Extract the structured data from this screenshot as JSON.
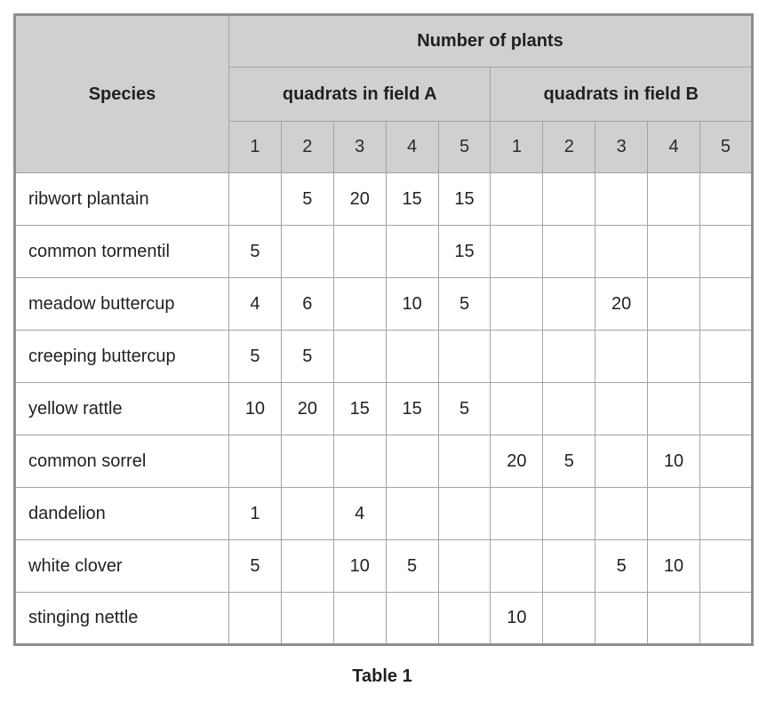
{
  "table": {
    "caption": "Table 1",
    "header": {
      "species": "Species",
      "number_of_plants": "Number of plants",
      "field_a": "quadrats in field A",
      "field_b": "quadrats in field B",
      "quadrat_numbers": [
        "1",
        "2",
        "3",
        "4",
        "5",
        "1",
        "2",
        "3",
        "4",
        "5"
      ]
    },
    "rows": [
      {
        "species": "ribwort plantain",
        "values": [
          "",
          "5",
          "20",
          "15",
          "15",
          "",
          "",
          "",
          "",
          ""
        ]
      },
      {
        "species": "common tormentil",
        "values": [
          "5",
          "",
          "",
          "",
          "15",
          "",
          "",
          "",
          "",
          ""
        ]
      },
      {
        "species": "meadow buttercup",
        "values": [
          "4",
          "6",
          "",
          "10",
          "5",
          "",
          "",
          "20",
          "",
          ""
        ]
      },
      {
        "species": "creeping buttercup",
        "values": [
          "5",
          "5",
          "",
          "",
          "",
          "",
          "",
          "",
          "",
          ""
        ]
      },
      {
        "species": "yellow rattle",
        "values": [
          "10",
          "20",
          "15",
          "15",
          "5",
          "",
          "",
          "",
          "",
          ""
        ]
      },
      {
        "species": "common sorrel",
        "values": [
          "",
          "",
          "",
          "",
          "",
          "20",
          "5",
          "",
          "10",
          ""
        ]
      },
      {
        "species": "dandelion",
        "values": [
          "1",
          "",
          "4",
          "",
          "",
          "",
          "",
          "",
          "",
          ""
        ]
      },
      {
        "species": "white clover",
        "values": [
          "5",
          "",
          "10",
          "5",
          "",
          "",
          "",
          "5",
          "10",
          ""
        ]
      },
      {
        "species": "stinging nettle",
        "values": [
          "",
          "",
          "",
          "",
          "",
          "10",
          "",
          "",
          "",
          ""
        ]
      }
    ]
  },
  "chart_data": {
    "type": "table",
    "title": "Table 1",
    "column_groups": [
      "Number of plants: quadrats in field A (1-5)",
      "Number of plants: quadrats in field B (1-5)"
    ],
    "categories": [
      "ribwort plantain",
      "common tormentil",
      "meadow buttercup",
      "creeping buttercup",
      "yellow rattle",
      "common sorrel",
      "dandelion",
      "white clover",
      "stinging nettle"
    ],
    "series": [
      {
        "name": "field A quadrat 1",
        "values": [
          null,
          5,
          4,
          5,
          10,
          null,
          1,
          5,
          null
        ]
      },
      {
        "name": "field A quadrat 2",
        "values": [
          5,
          null,
          6,
          5,
          20,
          null,
          null,
          null,
          null
        ]
      },
      {
        "name": "field A quadrat 3",
        "values": [
          20,
          null,
          null,
          null,
          15,
          null,
          4,
          10,
          null
        ]
      },
      {
        "name": "field A quadrat 4",
        "values": [
          15,
          null,
          10,
          null,
          15,
          null,
          null,
          5,
          null
        ]
      },
      {
        "name": "field A quadrat 5",
        "values": [
          15,
          15,
          5,
          null,
          5,
          null,
          null,
          null,
          null
        ]
      },
      {
        "name": "field B quadrat 1",
        "values": [
          null,
          null,
          null,
          null,
          null,
          20,
          null,
          null,
          10
        ]
      },
      {
        "name": "field B quadrat 2",
        "values": [
          null,
          null,
          null,
          null,
          null,
          5,
          null,
          null,
          null
        ]
      },
      {
        "name": "field B quadrat 3",
        "values": [
          null,
          null,
          20,
          null,
          null,
          null,
          null,
          5,
          null
        ]
      },
      {
        "name": "field B quadrat 4",
        "values": [
          null,
          null,
          null,
          null,
          null,
          10,
          null,
          10,
          null
        ]
      },
      {
        "name": "field B quadrat 5",
        "values": [
          null,
          null,
          null,
          null,
          null,
          null,
          null,
          null,
          null
        ]
      }
    ]
  },
  "colors": {
    "header_bg": "#d0d0d2",
    "grid_border": "#a3a3a5",
    "outer_border": "#8f8f91",
    "text": "#231f20"
  }
}
